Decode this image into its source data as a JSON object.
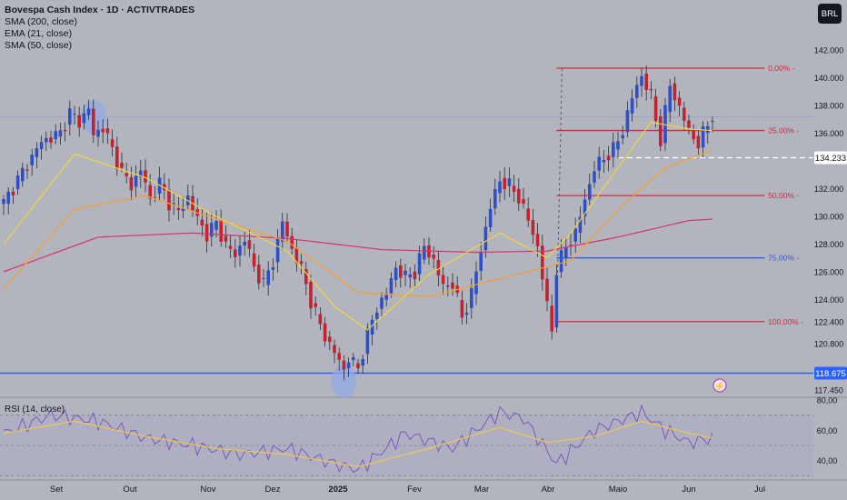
{
  "header": {
    "title": "Bovespa Cash Index · 1D · ACTIVTRADES",
    "indicators": [
      "SMA (200, close)",
      "EMA (21, close)",
      "SMA (50, close)"
    ],
    "currency": "BRL"
  },
  "rsi_label": "RSI (14, close)",
  "colors": {
    "background": "#b2b5be",
    "bull": "#2f4fc4",
    "bear": "#c2232f",
    "sma200": "#d9336f",
    "ema21": "#f2d340",
    "sma50": "#f5a032",
    "fib": "#d42a45",
    "fib75": "#2f5be6",
    "support": "#2962ff",
    "rsi": "#7e57c2",
    "rsi_ma": "#f2c94c"
  },
  "chart_data": [
    {
      "type": "candlestick",
      "y_range": [
        117000,
        143000
      ],
      "price_axis_labels": [
        "142.000",
        "140.000",
        "138.000",
        "136.000",
        "134.233",
        "132.000",
        "130.000",
        "128.000",
        "126.000",
        "124.000",
        "122.400",
        "120.800",
        "118.675",
        "117.450"
      ],
      "time_axis_labels": [
        "Set",
        "Out",
        "Nov",
        "Dez",
        "2025",
        "Fev",
        "Mar",
        "Abr",
        "Maio",
        "Jun",
        "Jul"
      ],
      "close_path": [
        [
          0,
          131000
        ],
        [
          4,
          133200
        ],
        [
          8,
          135400
        ],
        [
          12,
          136000
        ],
        [
          14,
          137500
        ],
        [
          16,
          136800
        ],
        [
          18,
          137800
        ],
        [
          19,
          135800
        ],
        [
          21,
          136500
        ],
        [
          23,
          134800
        ],
        [
          25,
          133200
        ],
        [
          27,
          132200
        ],
        [
          29,
          133400
        ],
        [
          31,
          131200
        ],
        [
          33,
          132400
        ],
        [
          35,
          131000
        ],
        [
          37,
          130300
        ],
        [
          39,
          131400
        ],
        [
          41,
          129800
        ],
        [
          43,
          128700
        ],
        [
          45,
          129500
        ],
        [
          47,
          127900
        ],
        [
          49,
          127200
        ],
        [
          51,
          128400
        ],
        [
          53,
          126300
        ],
        [
          55,
          125100
        ],
        [
          57,
          126800
        ],
        [
          59,
          129600
        ],
        [
          61,
          127600
        ],
        [
          63,
          126200
        ],
        [
          65,
          123900
        ],
        [
          67,
          122100
        ],
        [
          69,
          120700
        ],
        [
          71,
          119600
        ],
        [
          72,
          118900
        ],
        [
          73,
          119800
        ],
        [
          75,
          119000
        ],
        [
          77,
          121500
        ],
        [
          79,
          123400
        ],
        [
          81,
          124500
        ],
        [
          83,
          126300
        ],
        [
          85,
          125600
        ],
        [
          87,
          126000
        ],
        [
          89,
          127800
        ],
        [
          91,
          126800
        ],
        [
          93,
          124900
        ],
        [
          95,
          125200
        ],
        [
          97,
          122700
        ],
        [
          99,
          124400
        ],
        [
          101,
          127600
        ],
        [
          103,
          130700
        ],
        [
          105,
          132600
        ],
        [
          107,
          132200
        ],
        [
          109,
          131400
        ],
        [
          111,
          129700
        ],
        [
          113,
          127800
        ],
        [
          115,
          123500
        ],
        [
          116,
          121800
        ],
        [
          117,
          126200
        ],
        [
          119,
          127800
        ],
        [
          121,
          128800
        ],
        [
          123,
          131200
        ],
        [
          125,
          133500
        ],
        [
          127,
          134200
        ],
        [
          129,
          134800
        ],
        [
          131,
          136200
        ],
        [
          133,
          138600
        ],
        [
          135,
          140200
        ],
        [
          137,
          138600
        ],
        [
          139,
          135500
        ],
        [
          141,
          139500
        ],
        [
          143,
          137800
        ],
        [
          145,
          136200
        ],
        [
          147,
          135200
        ],
        [
          149,
          136700
        ],
        [
          150,
          137300
        ]
      ],
      "sma200_path": [
        [
          0,
          126000
        ],
        [
          20,
          128500
        ],
        [
          40,
          128800
        ],
        [
          60,
          128400
        ],
        [
          80,
          127600
        ],
        [
          100,
          127400
        ],
        [
          115,
          127500
        ],
        [
          130,
          128500
        ],
        [
          145,
          129700
        ],
        [
          150,
          129800
        ]
      ],
      "ema21_path": [
        [
          0,
          128000
        ],
        [
          15,
          134500
        ],
        [
          30,
          132800
        ],
        [
          45,
          130000
        ],
        [
          60,
          127500
        ],
        [
          70,
          123500
        ],
        [
          77,
          121800
        ],
        [
          90,
          125800
        ],
        [
          105,
          128800
        ],
        [
          115,
          127000
        ],
        [
          120,
          128800
        ],
        [
          130,
          133500
        ],
        [
          137,
          136800
        ],
        [
          145,
          136300
        ],
        [
          150,
          136200
        ]
      ],
      "sma50_path": [
        [
          0,
          124800
        ],
        [
          15,
          130500
        ],
        [
          30,
          131500
        ],
        [
          45,
          129800
        ],
        [
          60,
          128200
        ],
        [
          75,
          124500
        ],
        [
          90,
          124200
        ],
        [
          105,
          125500
        ],
        [
          120,
          126800
        ],
        [
          130,
          130500
        ],
        [
          140,
          133500
        ],
        [
          150,
          134800
        ]
      ],
      "horizontal_levels": [
        {
          "name": "support",
          "price": 118675,
          "label": "118.675"
        },
        {
          "name": "current-price",
          "price": 134233,
          "label": "134.233"
        }
      ],
      "fibonacci": {
        "start_index": 117,
        "end_index": 161,
        "high": 140700,
        "low": 122400,
        "levels": [
          {
            "label": "0,00%",
            "price": 140700
          },
          {
            "label": "25,00%",
            "price": 136200
          },
          {
            "label": "50,00%",
            "price": 131500
          },
          {
            "label": "75,00%",
            "price": 127000
          },
          {
            "label": "100,00%",
            "price": 122400
          }
        ]
      },
      "highlights": [
        {
          "name": "top-highlight",
          "index": 19,
          "price": 137200
        },
        {
          "name": "bottom-highlight",
          "index": 72,
          "price": 118100
        }
      ]
    },
    {
      "type": "line",
      "name": "RSI",
      "y_range": [
        32,
        80
      ],
      "axis_labels": [
        "80,00",
        "60,00",
        "40,00"
      ],
      "guide_levels": [
        70,
        50,
        30
      ],
      "rsi_path": [
        [
          0,
          58
        ],
        [
          10,
          70
        ],
        [
          20,
          66
        ],
        [
          30,
          55
        ],
        [
          40,
          50
        ],
        [
          50,
          44
        ],
        [
          60,
          48
        ],
        [
          70,
          38
        ],
        [
          75,
          34
        ],
        [
          85,
          58
        ],
        [
          95,
          48
        ],
        [
          105,
          72
        ],
        [
          110,
          68
        ],
        [
          117,
          38
        ],
        [
          125,
          60
        ],
        [
          135,
          72
        ],
        [
          140,
          60
        ],
        [
          145,
          52
        ],
        [
          150,
          55
        ]
      ],
      "rsi_ma_path": [
        [
          0,
          58
        ],
        [
          15,
          66
        ],
        [
          30,
          56
        ],
        [
          45,
          48
        ],
        [
          60,
          44
        ],
        [
          75,
          36
        ],
        [
          90,
          48
        ],
        [
          105,
          62
        ],
        [
          115,
          52
        ],
        [
          125,
          56
        ],
        [
          135,
          66
        ],
        [
          145,
          58
        ],
        [
          150,
          55
        ]
      ]
    }
  ]
}
